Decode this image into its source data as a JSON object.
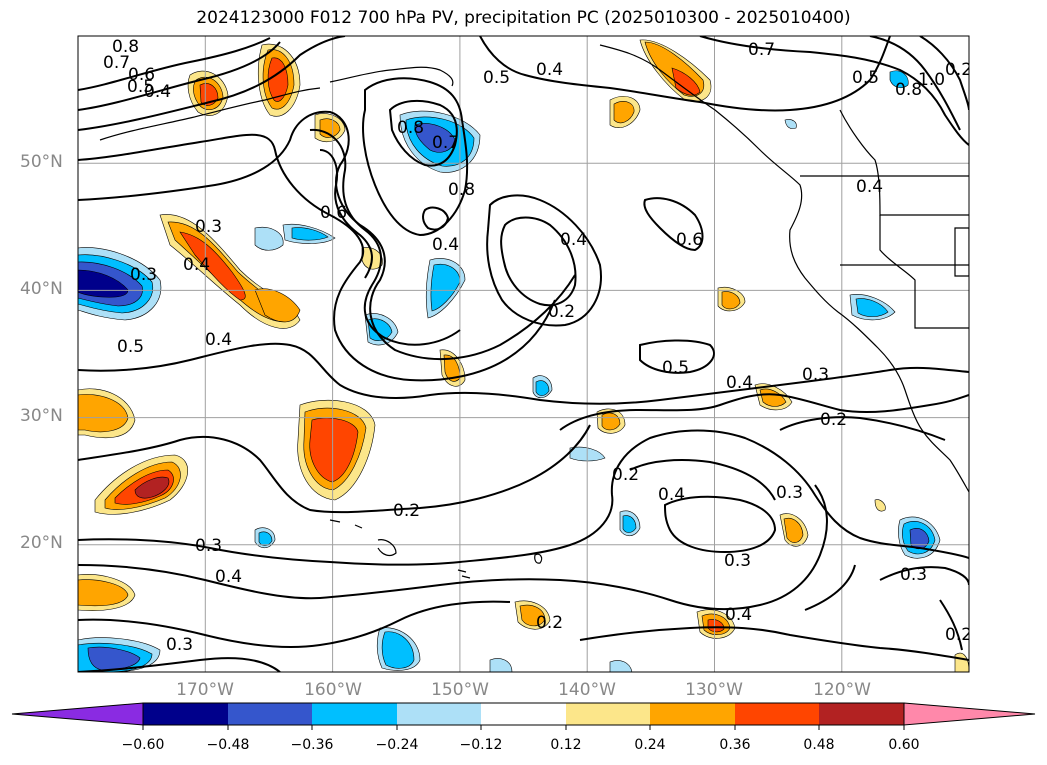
{
  "title": "2024123000 F012 700 hPa PV, precipitation PC (2025010300 - 2025010400)",
  "map": {
    "lat_labels": [
      "50°N",
      "40°N",
      "30°N",
      "20°N"
    ],
    "lon_labels": [
      "170°W",
      "160°W",
      "150°W",
      "140°W",
      "130°W",
      "120°W"
    ],
    "contour_labels": [
      "0.8",
      "0.7",
      "0.6",
      "0.5",
      "0.4",
      "0.5",
      "0.4",
      "0.7",
      "0.5",
      "0.8",
      "1.0",
      "0.2",
      "0.8",
      "0.7",
      "0.8",
      "0.6",
      "0.3",
      "0.4",
      "0.6",
      "0.3",
      "0.4",
      "0.2",
      "0.4",
      "0.5",
      "0.5",
      "0.4",
      "0.3",
      "0.2",
      "0.4",
      "0.2",
      "0.4",
      "0.3",
      "0.2",
      "0.3",
      "0.3",
      "0.4",
      "0.2",
      "0.3",
      "0.4",
      "0.3",
      "0.2",
      "0.4"
    ]
  },
  "colorbar": {
    "colors": [
      "#8a2be2",
      "#00008b",
      "#3556cc",
      "#00bfff",
      "#ade0f7",
      "#ffffff",
      "#fce68a",
      "#ffa500",
      "#ff4500",
      "#b22222",
      "#ff88aa"
    ],
    "tick_labels": [
      "−0.60",
      "−0.48",
      "−0.36",
      "−0.24",
      "−0.12",
      "0.12",
      "0.24",
      "0.36",
      "0.48",
      "0.60"
    ]
  }
}
